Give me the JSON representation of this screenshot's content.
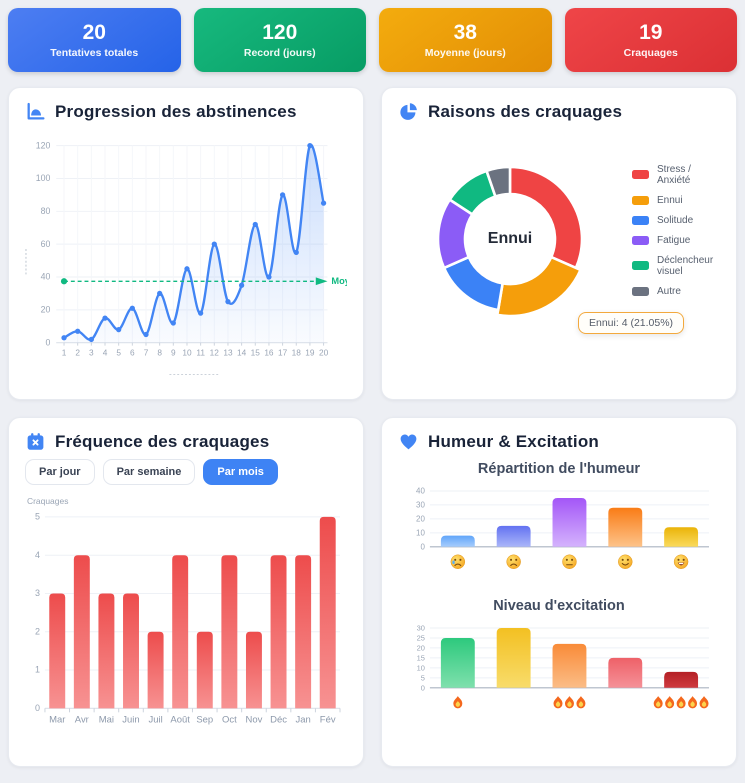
{
  "stats": [
    {
      "value": "20",
      "label": "Tentatives totales",
      "color_from": "#4d7ef2",
      "color_to": "#2563e8"
    },
    {
      "value": "120",
      "label": "Record (jours)",
      "color_from": "#17b97e",
      "color_to": "#079c64"
    },
    {
      "value": "38",
      "label": "Moyenne (jours)",
      "color_from": "#f4ac0e",
      "color_to": "#e28d05"
    },
    {
      "value": "19",
      "label": "Craquages",
      "color_from": "#ef4548",
      "color_to": "#db3034"
    }
  ],
  "panels": {
    "progression": {
      "title": "Progression des abstinences"
    },
    "raisons": {
      "title": "Raisons des craquages"
    },
    "frequence": {
      "title": "Fréquence des craquages",
      "buttons": [
        {
          "label": "Par jour",
          "active": false
        },
        {
          "label": "Par semaine",
          "active": false
        },
        {
          "label": "Par mois",
          "active": true
        }
      ]
    },
    "humeur": {
      "title": "Humeur & Excitation"
    }
  },
  "chart_data": [
    {
      "id": "abstinence-line",
      "type": "line",
      "x": [
        1,
        2,
        3,
        4,
        5,
        6,
        7,
        8,
        9,
        10,
        11,
        12,
        13,
        14,
        15,
        16,
        17,
        18,
        19,
        20
      ],
      "values": [
        3,
        7,
        2,
        15,
        8,
        21,
        5,
        30,
        12,
        45,
        18,
        60,
        25,
        35,
        72,
        40,
        90,
        55,
        120,
        85
      ],
      "ylim": [
        0,
        120
      ],
      "yticks": [
        0,
        20,
        40,
        60,
        80,
        100,
        120
      ],
      "line_color": "#4285f4",
      "grid": true,
      "average_line": {
        "value": 38,
        "label": "Moyenne",
        "color": "#10b981"
      }
    },
    {
      "id": "raisons-donut",
      "type": "pie",
      "labels": [
        "Stress / Anxiété",
        "Ennui",
        "Solitude",
        "Fatigue",
        "Déclencheur visuel",
        "Autre"
      ],
      "values": [
        6,
        4,
        3,
        3,
        2,
        1
      ],
      "colors": [
        "#ef4444",
        "#f59e0b",
        "#3b82f6",
        "#8b5cf6",
        "#10b981",
        "#6b7280"
      ],
      "center_label": "Ennui",
      "hover_index": 1,
      "tooltip": "Ennui: 4 (21.05%)",
      "legend_position": "right"
    },
    {
      "id": "craquages-bar",
      "type": "bar",
      "title": "",
      "ylabel": "Craquages",
      "categories": [
        "Mar",
        "Avr",
        "Mai",
        "Juin",
        "Juil",
        "Août",
        "Sep",
        "Oct",
        "Nov",
        "Déc",
        "Jan",
        "Fév"
      ],
      "values": [
        3,
        4,
        3,
        3,
        2,
        4,
        2,
        4,
        2,
        4,
        4,
        5
      ],
      "ylim": [
        0,
        5
      ],
      "yticks": [
        0,
        1,
        2,
        3,
        4,
        5
      ],
      "bar_color_top": "#ed4c4c",
      "bar_color_bottom": "#f79292"
    },
    {
      "id": "humeur-bar",
      "type": "bar",
      "title": "Répartition de l'humeur",
      "categories": [
        "😢",
        "😟",
        "😐",
        "🙂",
        "😄"
      ],
      "values": [
        8,
        15,
        35,
        28,
        14
      ],
      "ylim": [
        0,
        40
      ],
      "yticks": [
        0,
        10,
        20,
        30,
        40
      ],
      "colors": [
        [
          "#60a5fa",
          "#a7cdfc"
        ],
        [
          "#6372f1",
          "#aab6f9"
        ],
        [
          "#a356f7",
          "#d4b3fd"
        ],
        [
          "#f97c16",
          "#fdc38a"
        ],
        [
          "#eab308",
          "#fadb5e"
        ]
      ]
    },
    {
      "id": "excitation-bar",
      "type": "bar",
      "title": "Niveau d'excitation",
      "categories": [
        "🔥",
        "",
        "🔥🔥🔥",
        "",
        "🔥🔥🔥🔥🔥"
      ],
      "values": [
        25,
        30,
        22,
        15,
        8
      ],
      "ylim": [
        0,
        30
      ],
      "yticks": [
        0,
        5,
        10,
        15,
        20,
        25,
        30
      ],
      "colors": [
        [
          "#2dc97d",
          "#7fe0ad"
        ],
        [
          "#f3c022",
          "#f8dc6b"
        ],
        [
          "#f98b38",
          "#fbbd87"
        ],
        [
          "#ee6168",
          "#f59198"
        ],
        [
          "#b42025",
          "#cf3a3f"
        ]
      ]
    }
  ]
}
